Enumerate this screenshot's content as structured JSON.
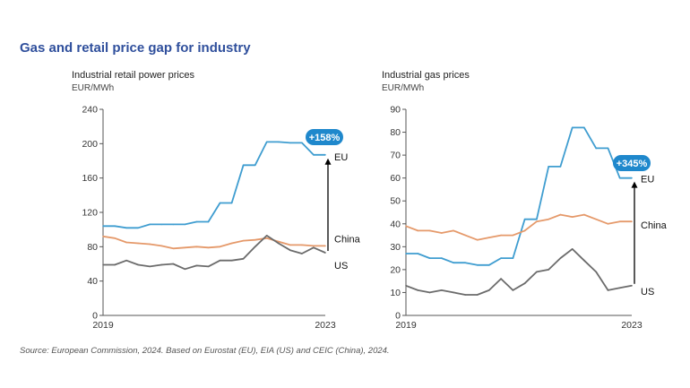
{
  "title": "Gas and retail price gap for industry",
  "source": "Source: European Commission, 2024. Based on Eurostat (EU), EIA (US) and CEIC (China), 2024.",
  "colors": {
    "eu": "#3f9dd0",
    "china": "#e5996a",
    "us": "#6b6b6b",
    "badge": "#1f88cc",
    "axis": "#555555",
    "arrow": "#000000"
  },
  "chart_data": [
    {
      "type": "line",
      "title": "Industrial retail power prices",
      "ylabel": "EUR/MWh",
      "ylim": [
        0,
        240
      ],
      "yticks": [
        0,
        40,
        80,
        120,
        160,
        200,
        240
      ],
      "x_tick_labels": [
        "2019",
        "2023"
      ],
      "grid": false,
      "annotation": "+158%",
      "series": [
        {
          "name": "EU",
          "values": [
            104,
            104,
            102,
            102,
            106,
            106,
            106,
            106,
            109,
            109,
            131,
            131,
            175,
            175,
            202,
            202,
            201,
            201,
            187,
            187
          ]
        },
        {
          "name": "China",
          "values": [
            92,
            90,
            85,
            84,
            83,
            81,
            78,
            79,
            80,
            79,
            80,
            84,
            87,
            88,
            90,
            86,
            82,
            82,
            81,
            81
          ]
        },
        {
          "name": "US",
          "values": [
            59,
            59,
            64,
            59,
            57,
            59,
            60,
            54,
            58,
            57,
            64,
            64,
            66,
            80,
            93,
            84,
            76,
            72,
            79,
            73
          ]
        }
      ]
    },
    {
      "type": "line",
      "title": "Industrial gas prices",
      "ylabel": "EUR/MWh",
      "ylim": [
        0,
        90
      ],
      "yticks": [
        0,
        10,
        20,
        30,
        40,
        50,
        60,
        70,
        80,
        90
      ],
      "x_tick_labels": [
        "2019",
        "2023"
      ],
      "grid": false,
      "annotation": "+345%",
      "series": [
        {
          "name": "EU",
          "values": [
            27,
            27,
            25,
            25,
            23,
            23,
            22,
            22,
            25,
            25,
            42,
            42,
            65,
            65,
            82,
            82,
            73,
            73,
            60,
            60
          ]
        },
        {
          "name": "China",
          "values": [
            39,
            37,
            37,
            36,
            37,
            35,
            33,
            34,
            35,
            35,
            37,
            41,
            42,
            44,
            43,
            44,
            42,
            40,
            41,
            41
          ]
        },
        {
          "name": "US",
          "values": [
            13,
            11,
            10,
            11,
            10,
            9,
            9,
            11,
            16,
            11,
            14,
            19,
            20,
            25,
            29,
            24,
            19,
            11,
            12,
            13
          ]
        }
      ]
    }
  ]
}
